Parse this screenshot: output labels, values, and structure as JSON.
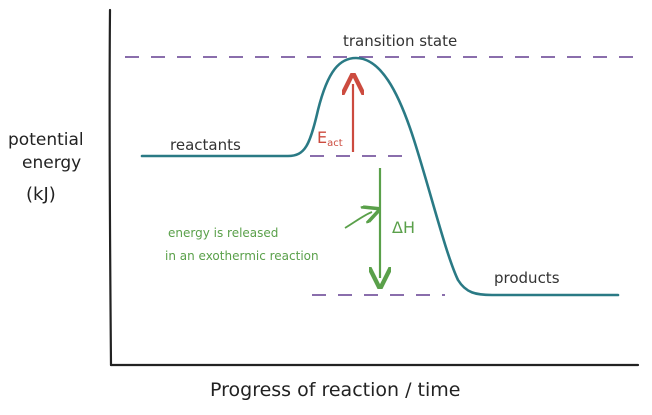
{
  "diagram": {
    "y_axis_label_lines": [
      "potential",
      "energy",
      "(kJ)"
    ],
    "x_axis_label": "Progress of reaction / time",
    "labels": {
      "transition_state": "transition state",
      "reactants": "reactants",
      "products": "products",
      "activation_energy_main": "E",
      "activation_energy_sub": "act",
      "delta_h": "ΔH",
      "note_line1": "energy is released",
      "note_line2": "in an exothermic reaction"
    },
    "colors": {
      "axis": "#222222",
      "curve": "#2a7a85",
      "dashed": "#7a5aa0",
      "activation": "#cc4b3f",
      "enthalpy": "#5aa04a",
      "text": "#333333"
    }
  }
}
